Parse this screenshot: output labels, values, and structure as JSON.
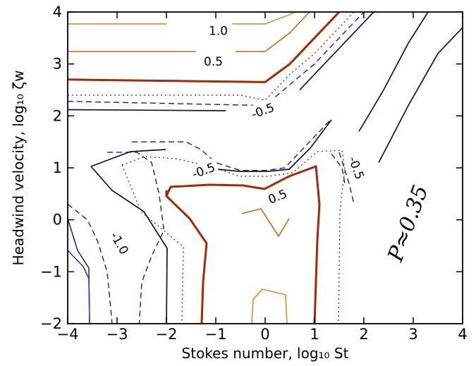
{
  "chart_data": {
    "type": "contour",
    "xlabel": "Stokes number, log₁₀ St",
    "ylabel": "Headwind velocity, log₁₀ ζw",
    "xlim": [
      -4,
      4
    ],
    "ylim": [
      -2,
      4
    ],
    "x_ticks": [
      -4,
      -3,
      -2,
      -1,
      0,
      1,
      2,
      3,
      4
    ],
    "x_tick_labels": [
      "−4",
      "−3",
      "−2",
      "−1",
      "0",
      "1",
      "2",
      "3",
      "4"
    ],
    "y_ticks": [
      -2,
      -1,
      0,
      1,
      2,
      3,
      4
    ],
    "y_tick_labels": [
      "−2",
      "−1",
      "0",
      "1",
      "2",
      "3",
      "4"
    ],
    "grid": false,
    "annotation": "P≈0.35",
    "contour_labels": [
      {
        "text": "1.0",
        "x": -0.95,
        "y": 3.64
      },
      {
        "text": "0.5",
        "x": -1.05,
        "y": 3.05
      },
      {
        "text": "-0.5",
        "x": -0.05,
        "y": 2.1
      },
      {
        "text": "-0.5",
        "x": -1.25,
        "y": 0.95
      },
      {
        "text": "0.5",
        "x": 0.25,
        "y": 0.45
      },
      {
        "text": "-0.5",
        "x": 1.85,
        "y": 1.0
      },
      {
        "text": "-1.0",
        "x": -2.95,
        "y": -0.45
      }
    ],
    "contour_lines": [
      {
        "level": "1.0",
        "color": "#e8862c",
        "width": 1.6,
        "dash": "",
        "points": [
          [
            -4,
            3.77
          ],
          [
            -2,
            3.77
          ]
        ]
      },
      {
        "level": "1.0",
        "color": "#e8862c",
        "width": 1.6,
        "dash": "",
        "points": [
          [
            -0.8,
            3.77
          ],
          [
            0,
            3.77
          ],
          [
            0.5,
            3.95
          ],
          [
            0.6,
            4
          ]
        ]
      },
      {
        "level": "0.5",
        "color": "#c8641a",
        "width": 1.6,
        "dash": "",
        "points": [
          [
            -4,
            3.24
          ],
          [
            -1.4,
            3.24
          ]
        ]
      },
      {
        "level": "0.5",
        "color": "#c8641a",
        "width": 1.6,
        "dash": "",
        "points": [
          [
            -0.6,
            3.24
          ],
          [
            0,
            3.24
          ],
          [
            0.5,
            3.6
          ],
          [
            0.9,
            4
          ]
        ]
      },
      {
        "level": "0.0",
        "color": "#a3290b",
        "width": 3.0,
        "dash": "",
        "points": [
          [
            -4,
            2.7
          ],
          [
            0,
            2.65
          ],
          [
            0.5,
            3
          ],
          [
            1,
            3.5
          ],
          [
            1.5,
            4
          ]
        ]
      },
      {
        "level": "0.0",
        "color": "#a01e1e",
        "width": 1.4,
        "dash": "2,4",
        "points": [
          [
            -4,
            2.4
          ],
          [
            -0.5,
            2.4
          ],
          [
            0,
            2.3
          ],
          [
            0.5,
            2.8
          ],
          [
            1,
            3.2
          ],
          [
            1.6,
            3.8
          ],
          [
            1.8,
            4
          ]
        ]
      },
      {
        "level": "-0.5",
        "color": "#1e2364",
        "width": 1.4,
        "dash": "8,5",
        "points": [
          [
            -4,
            2.28
          ],
          [
            0,
            2.2
          ],
          [
            0.5,
            2.6
          ],
          [
            1,
            3
          ],
          [
            1.5,
            3.5
          ],
          [
            2,
            4
          ]
        ]
      },
      {
        "level": "-0.5",
        "color": "#101338",
        "width": 1.7,
        "dash": "",
        "points": [
          [
            -4,
            2.12
          ],
          [
            -0.8,
            2.1
          ]
        ]
      },
      {
        "level": "-0.5",
        "color": "#101338",
        "width": 1.7,
        "dash": "",
        "points": [
          [
            0.7,
            2.5
          ],
          [
            1.2,
            3
          ],
          [
            1.7,
            3.5
          ],
          [
            2.2,
            4
          ]
        ]
      },
      {
        "level": "-0.5",
        "color": "#101338",
        "width": 1.7,
        "dash": "",
        "points": [
          [
            1.9,
            1.7
          ],
          [
            2.4,
            2.5
          ],
          [
            2.9,
            3.4
          ],
          [
            3.3,
            4
          ]
        ]
      },
      {
        "level": "-0.5",
        "color": "#101338",
        "width": 1.7,
        "dash": "",
        "points": [
          [
            2.3,
            1.1
          ],
          [
            2.9,
            2.2
          ],
          [
            3.5,
            3.2
          ],
          [
            4,
            3.7
          ]
        ]
      },
      {
        "level": "-0.5",
        "color": "#1e2364",
        "width": 1.4,
        "dash": "8,5",
        "points": [
          [
            -2.7,
            1.5
          ],
          [
            -1.6,
            1.5
          ],
          [
            -1.3,
            1.35
          ],
          [
            -1,
            1.1
          ],
          [
            -0.5,
            0.95
          ],
          [
            0,
            0.95
          ],
          [
            0.4,
            1
          ],
          [
            0.7,
            1.3
          ],
          [
            1,
            1.6
          ],
          [
            1.3,
            1.9
          ]
        ]
      },
      {
        "level": "-0.5",
        "color": "#1e2364",
        "width": 1.4,
        "dash": "8,5",
        "points": [
          [
            -3.2,
            1.3
          ],
          [
            -2.6,
            1.3
          ],
          [
            -2.3,
            1.1
          ],
          [
            -2.15,
            0.5
          ],
          [
            -2.05,
            -0.2
          ],
          [
            -2.3,
            -0.7
          ],
          [
            -2.5,
            -1.2
          ],
          [
            -2.55,
            -2
          ]
        ]
      },
      {
        "level": "-0.5",
        "color": "#1e2364",
        "width": 1.4,
        "dash": "8,5",
        "points": [
          [
            -4,
            0.3
          ],
          [
            -3.6,
            0
          ],
          [
            -3.4,
            -0.4
          ],
          [
            -3.2,
            -1
          ],
          [
            -3.1,
            -2
          ]
        ]
      },
      {
        "level": "-0.5",
        "color": "#1e2364",
        "width": 1.4,
        "dash": "8,5",
        "points": [
          [
            1.5,
            1.3
          ],
          [
            1.7,
            0.7
          ],
          [
            1.8,
            0.3
          ]
        ]
      },
      {
        "level": "-1.0",
        "color": "#101338",
        "width": 1.7,
        "dash": "",
        "points": [
          [
            -3.5,
            1
          ]
        ]
      }
    ]
  }
}
